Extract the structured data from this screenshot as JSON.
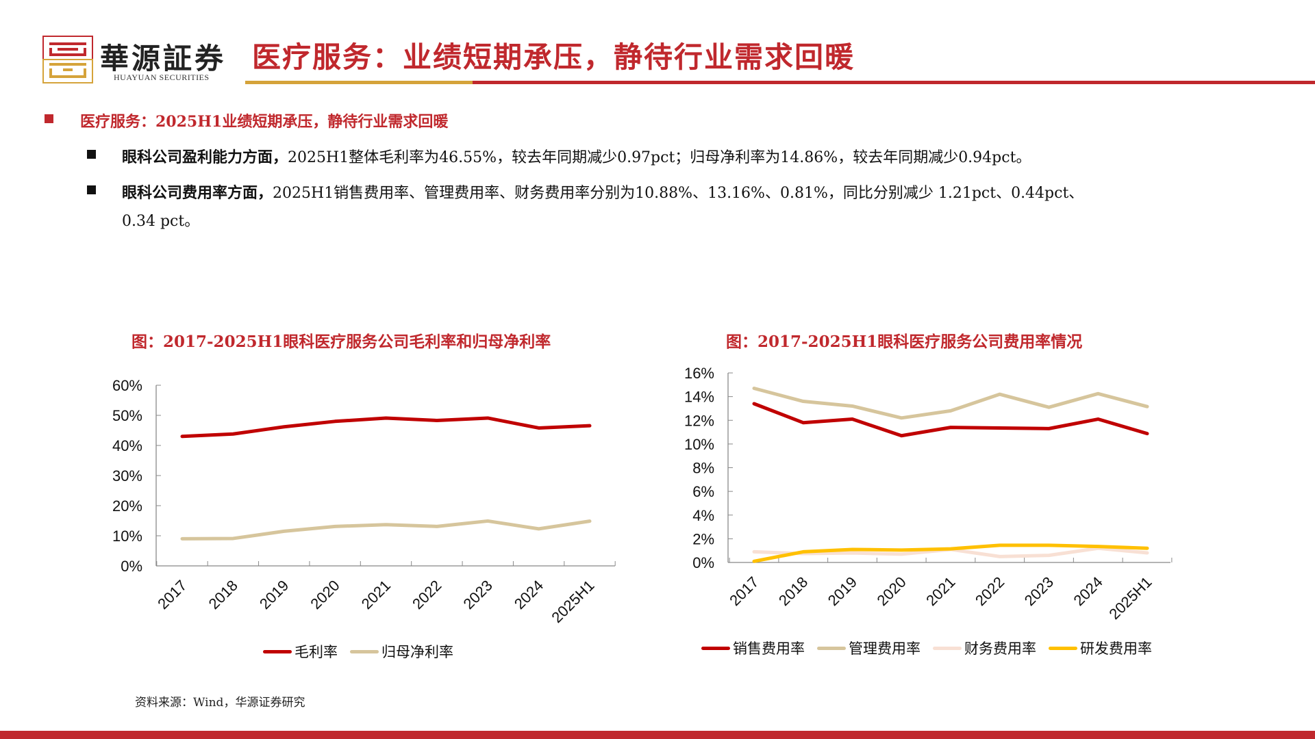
{
  "header": {
    "brand_cn": "華源証券",
    "brand_en": "HUAYUAN SECURITIES",
    "title": "医疗服务：业绩短期承压，静待行业需求回暖"
  },
  "colors": {
    "red": "#c0282d",
    "gold": "#d5a33a",
    "series_red": "#c00000",
    "series_tan": "#d6c59c",
    "series_pink": "#f8e0d4",
    "series_yellow": "#ffc000"
  },
  "content": {
    "heading": "医疗服务：2025H1业绩短期承压，静待行业需求回暖",
    "bullet1_bold": "眼科公司盈利能力方面，",
    "bullet1_text": "2025H1整体毛利率为46.55%，较去年同期减少0.97pct；归母净利率为14.86%，较去年同期减少0.94pct。",
    "bullet2_bold": "眼科公司费用率方面，",
    "bullet2_text": "2025H1销售费用率、管理费用率、财务费用率分别为10.88%、13.16%、0.81%，同比分别减少 1.21pct、0.44pct、",
    "bullet2_cont": "0.34 pct。"
  },
  "source": "资料来源：Wind，华源证券研究",
  "chart_data": [
    {
      "type": "line",
      "title": "图：2017-2025H1眼科医疗服务公司毛利率和归母净利率",
      "categories": [
        "2017",
        "2018",
        "2019",
        "2020",
        "2021",
        "2022",
        "2023",
        "2024",
        "2025H1"
      ],
      "ylim": [
        0,
        60
      ],
      "yticks": [
        "0%",
        "10%",
        "20%",
        "30%",
        "40%",
        "50%",
        "60%"
      ],
      "legend": "bottom",
      "grid": false,
      "series": [
        {
          "name": "毛利率",
          "color": "#c00000",
          "values": [
            43.0,
            43.8,
            46.2,
            48.0,
            49.1,
            48.3,
            49.1,
            45.8,
            46.55
          ]
        },
        {
          "name": "归母净利率",
          "color": "#d6c59c",
          "values": [
            9.0,
            9.1,
            11.5,
            13.1,
            13.7,
            13.1,
            14.9,
            12.3,
            14.86
          ]
        }
      ]
    },
    {
      "type": "line",
      "title": "图：2017-2025H1眼科医疗服务公司费用率情况",
      "categories": [
        "2017",
        "2018",
        "2019",
        "2020",
        "2021",
        "2022",
        "2023",
        "2024",
        "2025H1"
      ],
      "ylim": [
        0,
        16
      ],
      "yticks": [
        "0%",
        "2%",
        "4%",
        "6%",
        "8%",
        "10%",
        "12%",
        "14%",
        "16%"
      ],
      "legend": "bottom",
      "grid": false,
      "series": [
        {
          "name": "销售费用率",
          "color": "#c00000",
          "values": [
            13.4,
            11.8,
            12.1,
            10.7,
            11.4,
            11.35,
            11.3,
            12.1,
            10.88
          ]
        },
        {
          "name": "管理费用率",
          "color": "#d6c59c",
          "values": [
            14.7,
            13.6,
            13.2,
            12.2,
            12.8,
            14.2,
            13.1,
            14.25,
            13.16
          ]
        },
        {
          "name": "财务费用率",
          "color": "#f8e0d4",
          "values": [
            0.9,
            0.75,
            0.8,
            0.7,
            1.1,
            0.5,
            0.6,
            1.2,
            0.81
          ]
        },
        {
          "name": "研发费用率",
          "color": "#ffc000",
          "values": [
            0.1,
            0.9,
            1.1,
            1.05,
            1.15,
            1.45,
            1.45,
            1.35,
            1.2
          ]
        }
      ]
    }
  ]
}
